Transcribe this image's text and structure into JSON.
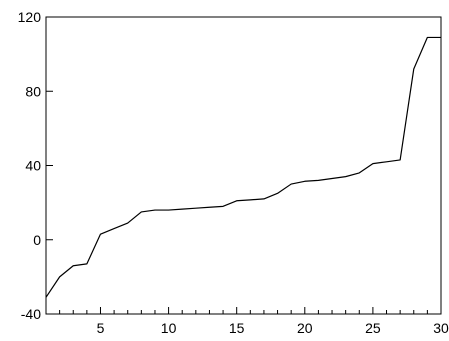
{
  "chart_data": {
    "type": "line",
    "x": [
      1,
      2,
      3,
      4,
      5,
      6,
      7,
      8,
      9,
      10,
      11,
      12,
      13,
      14,
      15,
      16,
      17,
      18,
      19,
      20,
      21,
      22,
      23,
      24,
      25,
      26,
      27,
      28,
      29,
      30
    ],
    "series": [
      {
        "values": [
          -31,
          -20,
          -14,
          -13,
          3,
          6,
          9,
          15,
          16,
          16,
          16.5,
          17,
          17.5,
          18,
          21,
          21.5,
          22,
          25,
          30,
          31.5,
          32,
          33,
          34,
          36,
          41,
          42,
          43,
          92,
          109,
          109
        ]
      }
    ],
    "xlim": [
      1,
      30
    ],
    "ylim": [
      -40,
      120
    ],
    "x_ticks": [
      {
        "value": 5,
        "label": "5"
      },
      {
        "value": 10,
        "label": "10"
      },
      {
        "value": 15,
        "label": "15"
      },
      {
        "value": 20,
        "label": "20"
      },
      {
        "value": 25,
        "label": "25"
      },
      {
        "value": 30,
        "label": "30"
      }
    ],
    "x_minor_ticks": [
      2,
      3,
      4,
      6,
      7,
      8,
      9,
      11,
      12,
      13,
      14,
      16,
      17,
      18,
      19,
      21,
      22,
      23,
      24,
      26,
      27,
      28,
      29
    ],
    "y_ticks": [
      {
        "value": -40,
        "label": "-40"
      },
      {
        "value": 0,
        "label": "0"
      },
      {
        "value": 40,
        "label": "40"
      },
      {
        "value": 80,
        "label": "80"
      },
      {
        "value": 120,
        "label": "120"
      }
    ],
    "grid": false,
    "line_color": "#000000",
    "axis_color": "#000000"
  }
}
